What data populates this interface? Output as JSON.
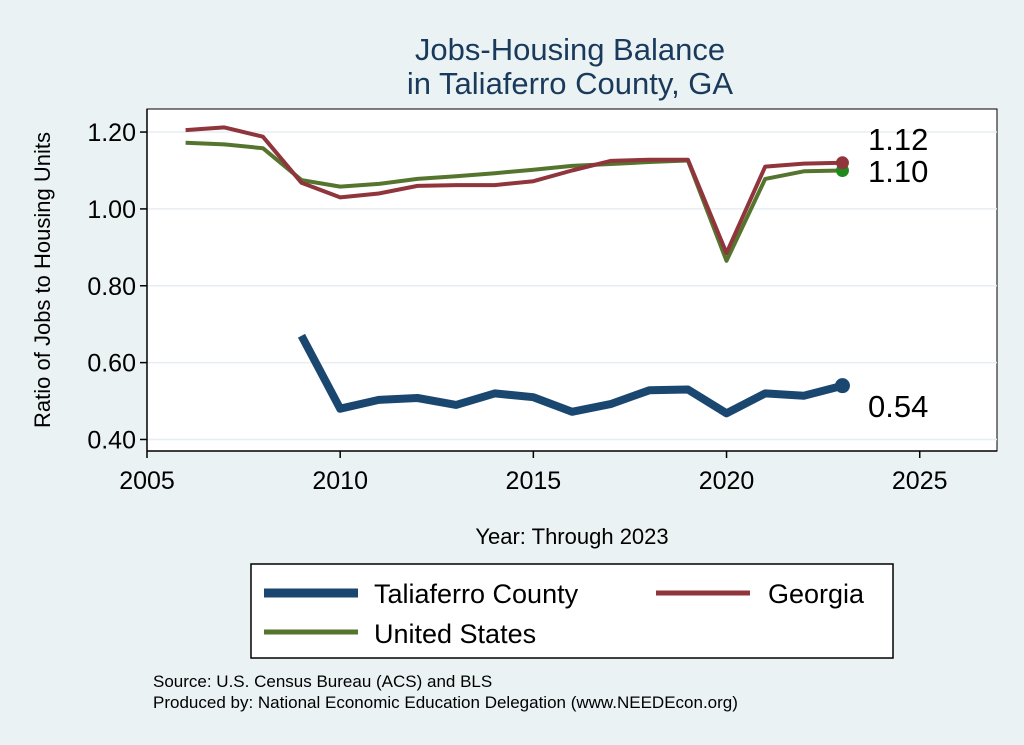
{
  "chart_data": {
    "type": "line",
    "title": [
      "Jobs-Housing Balance",
      "in Taliaferro County, GA"
    ],
    "xlabel": "Year: Through 2023",
    "ylabel": "Ratio of Jobs to Housing Units",
    "xlim": [
      2005,
      2027
    ],
    "ylim": [
      0.37,
      1.26
    ],
    "xticks": [
      2005,
      2010,
      2015,
      2020,
      2025
    ],
    "yticks": [
      0.4,
      0.6,
      0.8,
      1.0,
      1.2
    ],
    "ytick_labels": [
      "0.40",
      "0.60",
      "0.80",
      "1.00",
      "1.20"
    ],
    "grid": true,
    "legend_position": "bottom",
    "series": [
      {
        "name": "Taliaferro County",
        "color": "#1a476f",
        "width": "thick",
        "x": [
          2009,
          2010,
          2011,
          2012,
          2013,
          2014,
          2015,
          2016,
          2017,
          2018,
          2019,
          2020,
          2021,
          2022,
          2023
        ],
        "values": [
          0.67,
          0.48,
          0.503,
          0.508,
          0.49,
          0.52,
          0.51,
          0.472,
          0.492,
          0.528,
          0.53,
          0.468,
          0.52,
          0.514,
          0.54
        ],
        "end_label": "0.54"
      },
      {
        "name": "Georgia",
        "color": "#90353b",
        "width": "medium",
        "x": [
          2006,
          2007,
          2008,
          2009,
          2010,
          2011,
          2012,
          2013,
          2014,
          2015,
          2016,
          2017,
          2018,
          2019,
          2020,
          2021,
          2022,
          2023
        ],
        "values": [
          1.205,
          1.212,
          1.188,
          1.068,
          1.03,
          1.04,
          1.06,
          1.062,
          1.062,
          1.072,
          1.1,
          1.125,
          1.128,
          1.128,
          0.885,
          1.11,
          1.118,
          1.12
        ],
        "end_label": "1.12"
      },
      {
        "name": "United States",
        "color": "#55752f",
        "width": "medium",
        "x": [
          2006,
          2007,
          2008,
          2009,
          2010,
          2011,
          2012,
          2013,
          2014,
          2015,
          2016,
          2017,
          2018,
          2019,
          2020,
          2021,
          2022,
          2023
        ],
        "values": [
          1.172,
          1.168,
          1.158,
          1.075,
          1.058,
          1.065,
          1.078,
          1.085,
          1.093,
          1.102,
          1.112,
          1.117,
          1.122,
          1.126,
          0.865,
          1.078,
          1.098,
          1.1
        ],
        "end_label": "1.10",
        "marker_color": "#1e8a1e"
      }
    ],
    "legend": [
      {
        "name": "Taliaferro County",
        "color": "#1a476f"
      },
      {
        "name": "Georgia",
        "color": "#90353b"
      },
      {
        "name": "United States",
        "color": "#55752f"
      }
    ],
    "source_lines": [
      "Source: U.S. Census Bureau (ACS) and BLS",
      "Produced by: National Economic Education Delegation (www.NEEDEcon.org)"
    ]
  }
}
